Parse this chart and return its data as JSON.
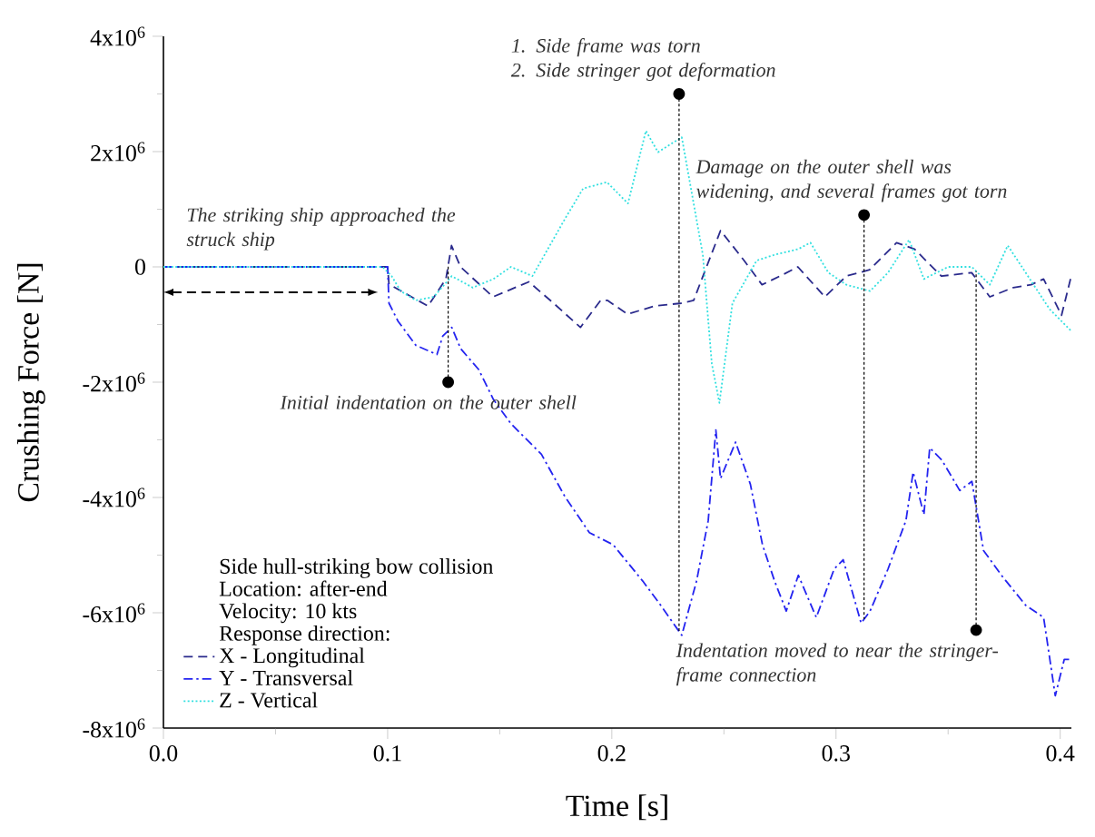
{
  "chart_data": {
    "type": "line",
    "xlabel": "Time [s]",
    "ylabel": "Crushing Force [N]",
    "marker": "none",
    "legend": "bottom left",
    "xlim": [
      0,
      0.405
    ],
    "ylim": [
      -8000000,
      4000000
    ],
    "xticks": [
      {
        "value": 0,
        "label": "0.0"
      },
      {
        "value": 0.05,
        "label": null
      },
      0.1,
      {
        "value": 0.15,
        "label": null
      },
      0.2,
      {
        "value": 0.25,
        "label": null
      },
      0.3,
      {
        "value": 0.35,
        "label": null
      },
      0.4
    ],
    "yticks": [
      {
        "value": 4000000,
        "label": "4x10$^{6}$"
      },
      {
        "value": 3000000,
        "label": null
      },
      {
        "value": 2000000,
        "label": "2x10$^{6}$"
      },
      {
        "value": 1000000,
        "label": null
      },
      0,
      {
        "value": -1000000,
        "label": null
      },
      {
        "value": -2000000,
        "label": "-2x10$^{6}$"
      },
      {
        "value": -3000000,
        "label": null
      },
      {
        "value": -4000000,
        "label": "-4x10$^{6}$"
      },
      {
        "value": -5000000,
        "label": null
      },
      {
        "value": -6000000,
        "label": "-6x10$^{6}$"
      },
      {
        "value": -7000000,
        "label": null
      },
      {
        "value": -8000000,
        "label": "-8x10$^{6}$"
      }
    ],
    "series": [
      {
        "name": "X - Longitudinal",
        "color": "#2a2a8c",
        "line_style": "dashed",
        "x": [
          0,
          0.1,
          0.1006,
          0.118,
          0.126,
          0.1285,
          0.1325,
          0.147,
          0.163,
          0.174,
          0.186,
          0.195,
          0.198,
          0.207,
          0.219,
          0.231,
          0.2365,
          0.2485,
          0.259,
          0.267,
          0.275,
          0.283,
          0.295,
          0.3046,
          0.315,
          0.327,
          0.335,
          0.347,
          0.3605,
          0.3686,
          0.379,
          0.387,
          0.3926,
          0.4006,
          0.4046
        ],
        "values": [
          0,
          0,
          -300000,
          -680000,
          -210000,
          370000,
          0,
          -520000,
          -260000,
          -630000,
          -1050000,
          -580000,
          -580000,
          -820000,
          -680000,
          -630000,
          -580000,
          630000,
          110000,
          -310000,
          -160000,
          0,
          -520000,
          -160000,
          -50000,
          420000,
          310000,
          -160000,
          -100000,
          -520000,
          -360000,
          -310000,
          -210000,
          -840000,
          -210000
        ]
      },
      {
        "name": "Y - Transversal",
        "color": "#2424f0",
        "line_style": "dashdot",
        "x": [
          0,
          0.1,
          0.1006,
          0.1046,
          0.1126,
          0.122,
          0.1246,
          0.1286,
          0.1326,
          0.1406,
          0.1472,
          0.155,
          0.1686,
          0.179,
          0.19,
          0.2006,
          0.2138,
          0.2218,
          0.2312,
          0.2378,
          0.243,
          0.2464,
          0.2485,
          0.2552,
          0.2618,
          0.2672,
          0.2726,
          0.2778,
          0.2832,
          0.2912,
          0.2992,
          0.3032,
          0.3112,
          0.3152,
          0.3232,
          0.3312,
          0.3344,
          0.3392,
          0.3418,
          0.3472,
          0.3552,
          0.3606,
          0.3658,
          0.3738,
          0.3846,
          0.3926,
          0.3978,
          0.4018,
          0.4046
        ],
        "values": [
          0,
          0,
          -630000,
          -940000,
          -1360000,
          -1520000,
          -1200000,
          -1050000,
          -1420000,
          -1780000,
          -2300000,
          -2720000,
          -3250000,
          -3980000,
          -4610000,
          -4820000,
          -5450000,
          -5870000,
          -6390000,
          -5450000,
          -4400000,
          -2830000,
          -3670000,
          -3040000,
          -3770000,
          -4820000,
          -5450000,
          -5970000,
          -5350000,
          -6080000,
          -5240000,
          -5080000,
          -6180000,
          -5970000,
          -5240000,
          -4400000,
          -3560000,
          -4300000,
          -3140000,
          -3350000,
          -3880000,
          -3720000,
          -4920000,
          -5350000,
          -5870000,
          -6080000,
          -7440000,
          -6810000,
          -6810000
        ]
      },
      {
        "name": "Z - Vertical",
        "color": "#33e0e0",
        "line_style": "dotted",
        "x": [
          0,
          0.0978,
          0.1018,
          0.1058,
          0.1126,
          0.1206,
          0.1286,
          0.138,
          0.1472,
          0.155,
          0.1646,
          0.1792,
          0.1872,
          0.1978,
          0.2072,
          0.2152,
          0.2206,
          0.2312,
          0.2406,
          0.2446,
          0.248,
          0.2538,
          0.2646,
          0.2726,
          0.2832,
          0.2886,
          0.2966,
          0.3046,
          0.3152,
          0.3232,
          0.3326,
          0.3392,
          0.35,
          0.3606,
          0.3686,
          0.3766,
          0.3846,
          0.3952,
          0.4046
        ],
        "values": [
          0,
          0,
          -160000,
          -420000,
          -580000,
          -520000,
          -160000,
          -360000,
          -210000,
          0,
          -160000,
          840000,
          1360000,
          1470000,
          1100000,
          2360000,
          1990000,
          2250000,
          210000,
          -1680000,
          -2360000,
          -630000,
          110000,
          210000,
          310000,
          420000,
          -100000,
          -310000,
          -420000,
          -100000,
          470000,
          -210000,
          0,
          0,
          -310000,
          370000,
          -100000,
          -730000,
          -1100000
        ]
      }
    ],
    "annotations": [
      "The striking ship approached the struck ship",
      "Side hull-striking bow collision",
      "Location: after-end",
      "Velocity: 10 kts",
      "Response direction:",
      {
        "text": "Initial indentation on the outer shell",
        "x": 0.127,
        "y": -2000000
      },
      {
        "text": "1.  Side frame was torn",
        "x": 0.23,
        "y": 3000000
      },
      "2.  Side stringer got deformation",
      {
        "text": "Damage on the outer shell was widening, and several frames got torn",
        "x": 0.3125,
        "y": 900000
      },
      {
        "text": "Indentation moved to near the stringer-frame connection",
        "x": 0.3625,
        "y": -6300000
      }
    ]
  }
}
